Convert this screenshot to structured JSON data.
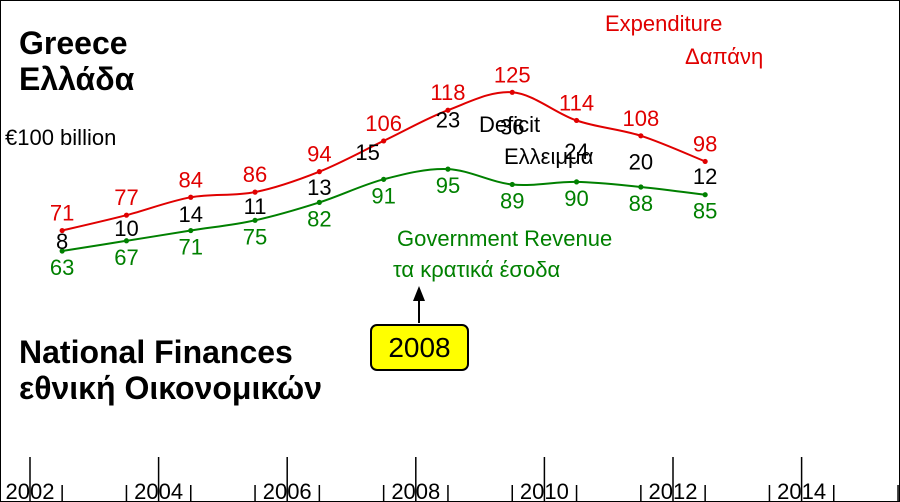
{
  "chart": {
    "title_line1": "Greece",
    "title_line2": "Ελλάδα",
    "unit_note": "€100 billion",
    "subtitle_line1": "National Finances",
    "subtitle_line2": "εθνική Οικονομικών",
    "callout": "2008",
    "expenditure_label_en": "Expenditure",
    "expenditure_label_el": "Δαπάνη",
    "revenue_label_en": "Government Revenue",
    "revenue_label_el": "τα κρατικά έσοδα",
    "deficit_label_en": "Deficit",
    "deficit_label_el": "Ελλειμμα"
  },
  "chart_data": {
    "type": "line",
    "xlim": [
      2002,
      2015.5
    ],
    "ylim": [
      0,
      140
    ],
    "x_ticks": [
      2002,
      2004,
      2006,
      2008,
      2010,
      2012,
      2014
    ],
    "x": [
      2002.5,
      2003.5,
      2004.5,
      2005.5,
      2006.5,
      2007.5,
      2008.5,
      2009.5,
      2010.5,
      2011.5,
      2012.5
    ],
    "series": [
      {
        "name": "Expenditure",
        "color": "#e00000",
        "values": [
          71,
          77,
          84,
          86,
          94,
          106,
          118,
          125,
          114,
          108,
          98
        ]
      },
      {
        "name": "Government Revenue",
        "color": "#008000",
        "values": [
          63,
          67,
          71,
          75,
          82,
          91,
          95,
          89,
          90,
          88,
          85
        ]
      }
    ],
    "deficit": [
      8,
      10,
      14,
      11,
      13,
      15,
      23,
      36,
      24,
      20,
      12
    ],
    "grid": false,
    "legend": "inline labels"
  },
  "colors": {
    "expenditure": "#e00000",
    "revenue": "#008000",
    "deficit": "#000000",
    "callout_fill": "#ffff00"
  }
}
